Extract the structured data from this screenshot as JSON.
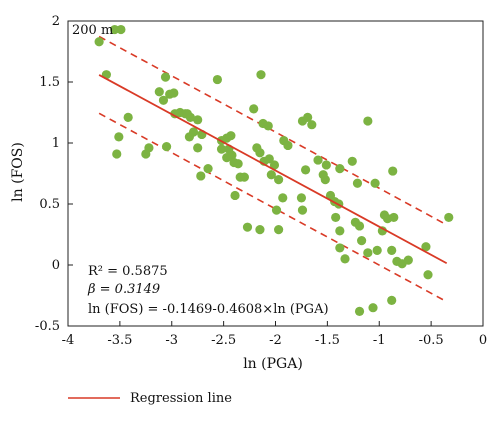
{
  "chart_data": {
    "type": "scatter",
    "panel_label": "200 m",
    "xlabel": "ln (PGA)",
    "ylabel": "ln (FOS)",
    "xlim": [
      -4,
      0
    ],
    "ylim": [
      -0.5,
      2
    ],
    "x_ticks": [
      -4,
      -3.5,
      -3,
      -2.5,
      -2,
      -1.5,
      -1,
      -0.5,
      0
    ],
    "y_ticks": [
      -0.5,
      0,
      0.5,
      1,
      1.5,
      2
    ],
    "x_tick_labels": [
      "-4",
      "-3.5",
      "-3",
      "-2.5",
      "-2",
      "-1.5",
      "-1",
      "-0.5",
      "0"
    ],
    "y_tick_labels": [
      "-0.5",
      "0",
      "0.5",
      "1",
      "1.5",
      "2"
    ],
    "grid": false,
    "point_color": "#7cb342",
    "line_color": "#d93a26",
    "stats": {
      "r2": "R² = 0.5875",
      "beta": "β = 0.3149",
      "equation": "ln (FOS) = -0.1469-0.4608×ln (PGA)"
    },
    "legend": {
      "label": "Regression line",
      "position": "bottom-left"
    },
    "regression": {
      "intercept": -0.1469,
      "slope": -0.4608,
      "x_range": [
        -3.7,
        -0.35
      ],
      "band_offset": 0.3149
    },
    "points": [
      [
        -3.7,
        1.83
      ],
      [
        -3.55,
        1.93
      ],
      [
        -3.49,
        1.93
      ],
      [
        -3.63,
        1.56
      ],
      [
        -3.51,
        1.05
      ],
      [
        -3.53,
        0.91
      ],
      [
        -3.42,
        1.21
      ],
      [
        -3.22,
        0.96
      ],
      [
        -3.25,
        0.91
      ],
      [
        -3.12,
        1.42
      ],
      [
        -3.06,
        1.54
      ],
      [
        -3.02,
        1.4
      ],
      [
        -3.08,
        1.35
      ],
      [
        -2.98,
        1.41
      ],
      [
        -2.92,
        1.25
      ],
      [
        -2.97,
        1.24
      ],
      [
        -2.87,
        1.24
      ],
      [
        -2.85,
        1.24
      ],
      [
        -2.82,
        1.21
      ],
      [
        -2.79,
        1.09
      ],
      [
        -2.75,
        1.19
      ],
      [
        -2.71,
        1.07
      ],
      [
        -2.83,
        1.05
      ],
      [
        -3.05,
        0.97
      ],
      [
        -2.75,
        0.96
      ],
      [
        -2.72,
        0.73
      ],
      [
        -2.65,
        0.79
      ],
      [
        -2.56,
        1.52
      ],
      [
        -2.52,
        1.02
      ],
      [
        -2.47,
        1.04
      ],
      [
        -2.43,
        1.06
      ],
      [
        -2.52,
        0.95
      ],
      [
        -2.45,
        0.95
      ],
      [
        -2.42,
        0.9
      ],
      [
        -2.4,
        0.84
      ],
      [
        -2.47,
        0.88
      ],
      [
        -2.36,
        0.83
      ],
      [
        -2.34,
        0.72
      ],
      [
        -2.3,
        0.72
      ],
      [
        -2.39,
        0.57
      ],
      [
        -2.27,
        0.31
      ],
      [
        -2.21,
        1.28
      ],
      [
        -2.18,
        0.96
      ],
      [
        -2.15,
        0.92
      ],
      [
        -2.12,
        1.16
      ],
      [
        -2.07,
        1.14
      ],
      [
        -2.14,
        1.56
      ],
      [
        -2.11,
        0.85
      ],
      [
        -2.06,
        0.87
      ],
      [
        -2.01,
        0.82
      ],
      [
        -2.04,
        0.74
      ],
      [
        -1.97,
        0.7
      ],
      [
        -1.93,
        0.55
      ],
      [
        -1.99,
        0.45
      ],
      [
        -2.15,
        0.29
      ],
      [
        -1.97,
        0.29
      ],
      [
        -1.92,
        1.02
      ],
      [
        -1.88,
        0.98
      ],
      [
        -1.74,
        1.18
      ],
      [
        -1.69,
        1.21
      ],
      [
        -1.65,
        1.15
      ],
      [
        -1.75,
        0.55
      ],
      [
        -1.74,
        0.45
      ],
      [
        -1.71,
        0.78
      ],
      [
        -1.59,
        0.86
      ],
      [
        -1.54,
        0.74
      ],
      [
        -1.52,
        0.7
      ],
      [
        -1.47,
        0.57
      ],
      [
        -1.43,
        0.52
      ],
      [
        -1.39,
        0.5
      ],
      [
        -1.42,
        0.39
      ],
      [
        -1.51,
        0.82
      ],
      [
        -1.38,
        0.79
      ],
      [
        -1.38,
        0.28
      ],
      [
        -1.38,
        0.14
      ],
      [
        -1.33,
        0.05
      ],
      [
        -1.26,
        0.85
      ],
      [
        -1.21,
        0.67
      ],
      [
        -1.23,
        0.35
      ],
      [
        -1.19,
        0.32
      ],
      [
        -1.17,
        0.2
      ],
      [
        -1.11,
        1.18
      ],
      [
        -1.11,
        0.1
      ],
      [
        -1.04,
        0.67
      ],
      [
        -0.97,
        0.28
      ],
      [
        -0.95,
        0.41
      ],
      [
        -0.92,
        0.38
      ],
      [
        -0.86,
        0.39
      ],
      [
        -0.88,
        0.12
      ],
      [
        -0.83,
        0.03
      ],
      [
        -0.78,
        0.01
      ],
      [
        -0.72,
        0.04
      ],
      [
        -0.88,
        -0.29
      ],
      [
        -1.06,
        -0.35
      ],
      [
        -1.19,
        -0.38
      ],
      [
        -0.55,
        0.15
      ],
      [
        -0.53,
        -0.08
      ],
      [
        -0.33,
        0.39
      ],
      [
        -0.87,
        0.77
      ],
      [
        -1.02,
        0.12
      ]
    ]
  }
}
